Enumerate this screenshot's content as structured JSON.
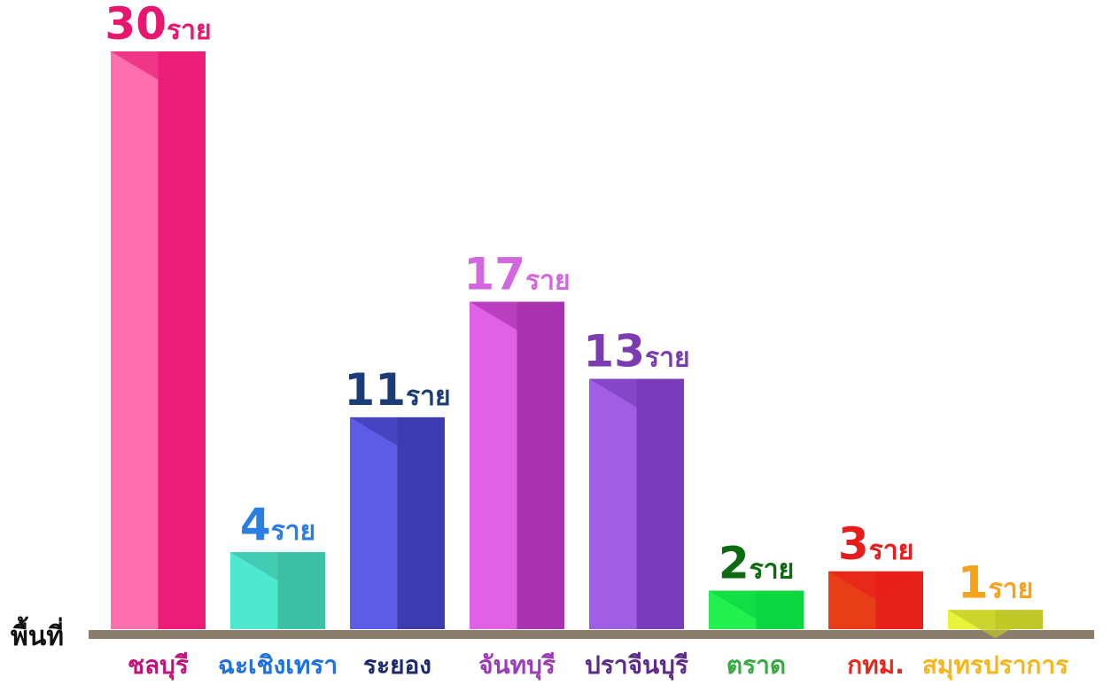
{
  "chart_data": {
    "type": "bar3d",
    "x_label": "พื้นที่",
    "categories": [
      "ชลบุรี",
      "ฉะเชิงเทรา",
      "ระยอง",
      "จันทบุรี",
      "ปราจีนบุรี",
      "ตราด",
      "กทม.",
      "สมุทรปราการ"
    ],
    "values": [
      30,
      4,
      11,
      17,
      13,
      2,
      3,
      1
    ],
    "value_labels": [
      "30ราย",
      "4ราย",
      "11ราย",
      "17ราย",
      "13ราย",
      "2ราย",
      "3ราย",
      "1ราย"
    ],
    "ylim": [
      0,
      30
    ],
    "colors": [
      "#ff6fae",
      "#4de8cf",
      "#5c5ce6",
      "#e060e6",
      "#a05ee6",
      "#22f04e",
      "#e83e18",
      "#e8f23a"
    ],
    "shade_colors": [
      "#ea1e78",
      "#3dbfa6",
      "#3c3cb0",
      "#a832b0",
      "#7a3cbc",
      "#0ad640",
      "#e8201a",
      "#c0c828"
    ],
    "value_label_colors": [
      "#e8166e",
      "#2a7de1",
      "#1c3c78",
      "#d466e0",
      "#7a3cb0",
      "#0c6a10",
      "#e91c1c",
      "#f5a31a"
    ],
    "label_colors": [
      "#c0137a",
      "#1e6fe0",
      "#1b2a6e",
      "#9b3bb5",
      "#5b2a8a",
      "#3aa843",
      "#e8261c",
      "#f7b51b"
    ],
    "axis_color": "#8b7d6b"
  }
}
